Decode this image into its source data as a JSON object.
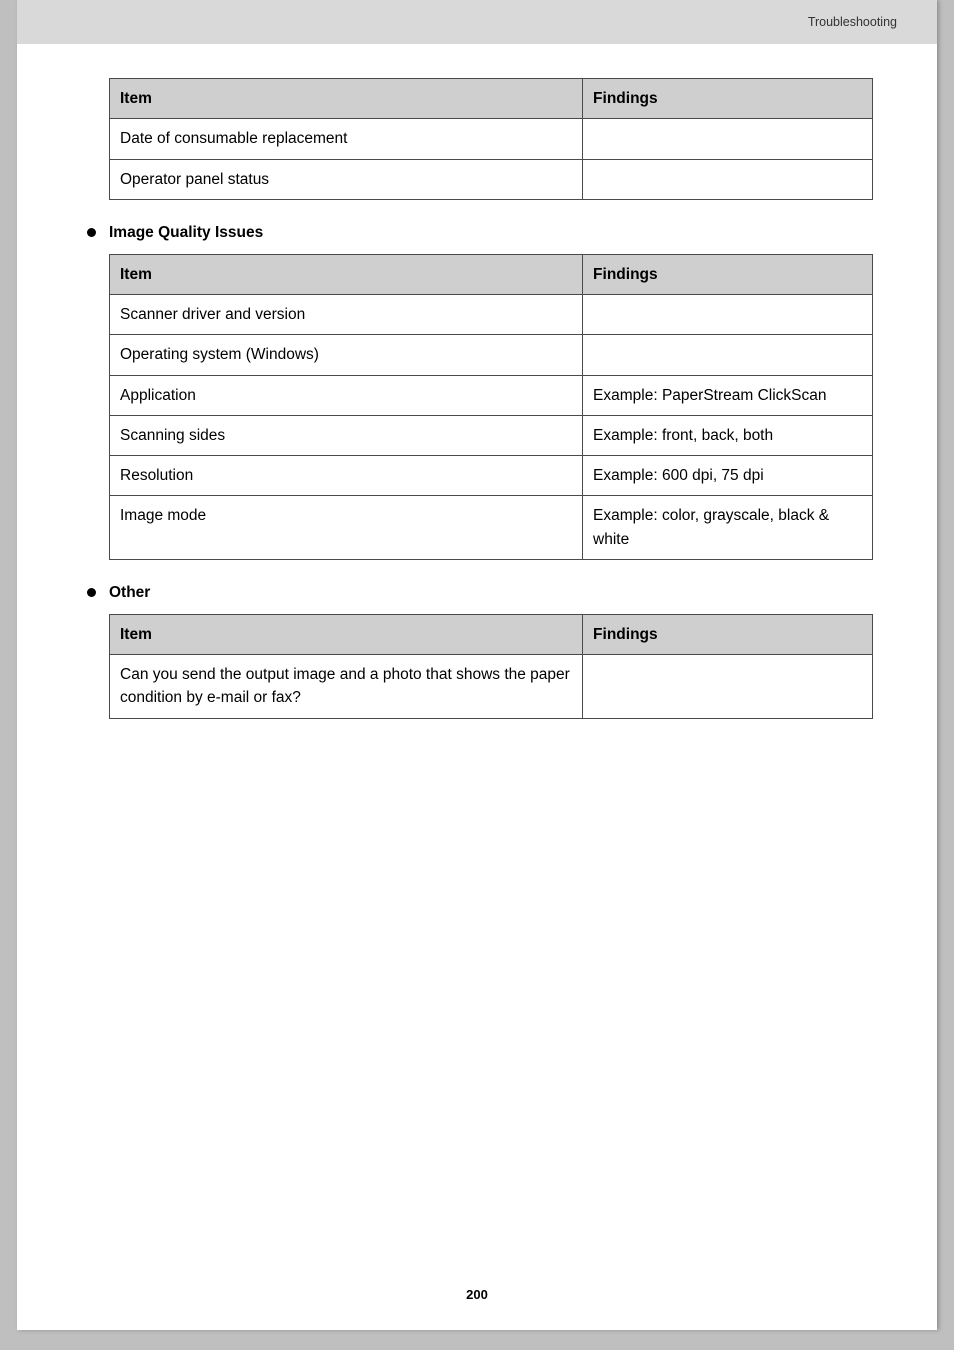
{
  "header": {
    "breadcrumb": "Troubleshooting"
  },
  "table1": {
    "col_item": "Item",
    "col_findings": "Findings",
    "rows": [
      {
        "item": "Date of consumable replacement",
        "findings": ""
      },
      {
        "item": "Operator panel status",
        "findings": ""
      }
    ]
  },
  "section_iq": {
    "title": "Image Quality Issues",
    "col_item": "Item",
    "col_findings": "Findings",
    "rows": [
      {
        "item": "Scanner driver and version",
        "findings": ""
      },
      {
        "item": "Operating system (Windows)",
        "findings": ""
      },
      {
        "item": "Application",
        "findings": "Example: PaperStream ClickScan"
      },
      {
        "item": "Scanning sides",
        "findings": "Example: front, back, both"
      },
      {
        "item": "Resolution",
        "findings": "Example: 600 dpi, 75 dpi"
      },
      {
        "item": "Image mode",
        "findings": "Example: color, grayscale, black & white"
      }
    ]
  },
  "section_other": {
    "title": "Other",
    "col_item": "Item",
    "col_findings": "Findings",
    "rows": [
      {
        "item": "Can you send the output image and a photo that shows the paper condition by e-mail or fax?",
        "findings": ""
      }
    ]
  },
  "page_number": "200",
  "colors": {
    "page_bg": "#ffffff",
    "outer_bg": "#bfbfbf",
    "header_bg": "#d9d9d9",
    "th_bg": "#cfcfcf",
    "border": "#4a4a4a",
    "text": "#000000"
  }
}
